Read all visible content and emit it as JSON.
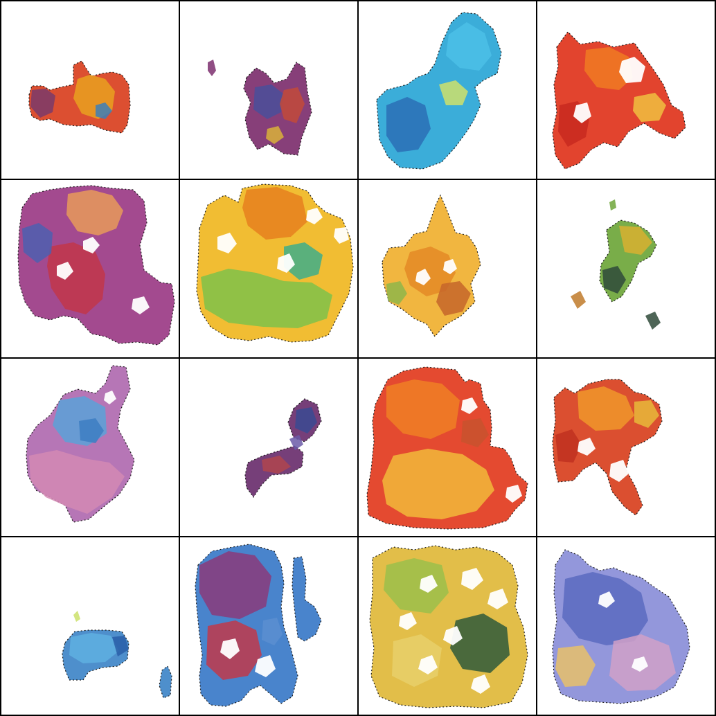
{
  "grid": {
    "rows": 4,
    "columns": 4,
    "border_color": "#000000",
    "tile_background": "#ffffff"
  },
  "tiles": [
    {
      "palette": [
        "#d9401f",
        "#e9a020",
        "#7a3a6a",
        "#3c7fb8"
      ]
    },
    {
      "palette": [
        "#7d2f6e",
        "#4a4f9a",
        "#c24a3a",
        "#d9b13a"
      ]
    },
    {
      "palette": [
        "#2aa6d6",
        "#4cc0e6",
        "#2b6fb5",
        "#cfe06a"
      ]
    },
    {
      "palette": [
        "#e0341c",
        "#f07a22",
        "#c8291e",
        "#f0c040"
      ]
    },
    {
      "palette": [
        "#9b3b86",
        "#c2364a",
        "#e89a5a",
        "#4e5fb0"
      ]
    },
    {
      "palette": [
        "#f0b722",
        "#e6801f",
        "#7fc24a",
        "#3fae8a"
      ]
    },
    {
      "palette": [
        "#f0b030",
        "#e48a26",
        "#c6662a",
        "#8fb64a"
      ]
    },
    {
      "palette": [
        "#6ea63a",
        "#d8b030",
        "#2f4a3a",
        "#c07a2a"
      ]
    },
    {
      "palette": [
        "#b06ab0",
        "#5aa2d8",
        "#d48ab4",
        "#3d7ec2"
      ]
    },
    {
      "palette": [
        "#6a2f6e",
        "#3b4a92",
        "#b0454e",
        "#6b5aa8"
      ]
    },
    {
      "palette": [
        "#e23b1e",
        "#f07f24",
        "#f2b83a",
        "#c8522e"
      ]
    },
    {
      "palette": [
        "#d8401e",
        "#f0962a",
        "#c03020",
        "#e8b83a"
      ]
    },
    {
      "palette": [
        "#3f86c8",
        "#5fb0e0",
        "#2a5fa8",
        "#cbe06a"
      ]
    },
    {
      "palette": [
        "#3a7ac8",
        "#8a3a7a",
        "#c0384a",
        "#5a8ed0"
      ]
    },
    {
      "palette": [
        "#e0b83a",
        "#9bc04a",
        "#2f5a3a",
        "#e8d06a"
      ]
    },
    {
      "palette": [
        "#8a8ed8",
        "#5a6ac0",
        "#d0a0c8",
        "#e8c06a"
      ]
    }
  ]
}
